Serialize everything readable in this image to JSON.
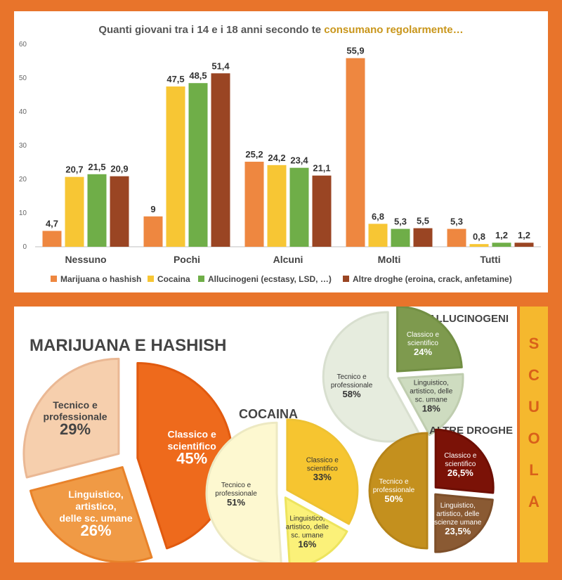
{
  "colors": {
    "background": "#e8742b",
    "marijuana": "#ee8740",
    "cocaina": "#f7c634",
    "allucinogeni": "#6fae48",
    "altre": "#9a4523",
    "accent_text": "#c9961b"
  },
  "chart_data": [
    {
      "type": "bar",
      "title_parts": [
        "Quanti giovani tra i 14 e i 18 anni secondo te ",
        "consumano regolarmente…"
      ],
      "categories": [
        "Nessuno",
        "Pochi",
        "Alcuni",
        "Molti",
        "Tutti"
      ],
      "series": [
        {
          "name": "Marijuana o hashish",
          "values": [
            4.7,
            9,
            25.2,
            55.9,
            5.3
          ],
          "labels": [
            "4,7",
            "9",
            "25,2",
            "55,9",
            "5,3"
          ]
        },
        {
          "name": "Cocaina",
          "values": [
            20.7,
            47.5,
            24.2,
            6.8,
            0.8
          ],
          "labels": [
            "20,7",
            "47,5",
            "24,2",
            "6,8",
            "0,8"
          ]
        },
        {
          "name": "Allucinogeni (ecstasy, LSD, …)",
          "values": [
            21.5,
            48.5,
            23.4,
            5.3,
            1.2
          ],
          "labels": [
            "21,5",
            "48,5",
            "23,4",
            "5,3",
            "1,2"
          ]
        },
        {
          "name": "Altre droghe (eroina, crack, anfetamine)",
          "values": [
            20.9,
            51.4,
            21.1,
            5.5,
            1.2
          ],
          "labels": [
            "20,9",
            "51,4",
            "21,1",
            "5,5",
            "1,2"
          ]
        }
      ],
      "ylim": [
        0,
        60
      ],
      "yticks": [
        "0",
        "10",
        "20",
        "30",
        "40",
        "50",
        "60"
      ],
      "legend_position": "bottom",
      "grid": false
    },
    {
      "type": "pie",
      "title": "MARIJUANA E HASHISH",
      "slices": [
        {
          "label": [
            "Classico e",
            "scientifico"
          ],
          "value": 45,
          "value_label": "45%"
        },
        {
          "label": [
            "Linguistico,",
            "artistico,",
            "delle sc. umane"
          ],
          "value": 26,
          "value_label": "26%"
        },
        {
          "label": [
            "Tecnico e",
            "professionale"
          ],
          "value": 29,
          "value_label": "29%"
        }
      ]
    },
    {
      "type": "pie",
      "title": "COCAINA",
      "slices": [
        {
          "label": [
            "Classico e",
            "scientifico"
          ],
          "value": 33,
          "value_label": "33%"
        },
        {
          "label": [
            "Linguistico,",
            "artistico, delle",
            "sc. umane"
          ],
          "value": 16,
          "value_label": "16%"
        },
        {
          "label": [
            "Tecnico e",
            "professionale"
          ],
          "value": 51,
          "value_label": "51%"
        }
      ]
    },
    {
      "type": "pie",
      "title": "ALLUCINOGENI",
      "slices": [
        {
          "label": [
            "Classico e",
            "scientifico"
          ],
          "value": 24,
          "value_label": "24%"
        },
        {
          "label": [
            "Linguistico,",
            "artistico, delle",
            "sc. umane"
          ],
          "value": 18,
          "value_label": "18%"
        },
        {
          "label": [
            "Tecnico e",
            "professionale"
          ],
          "value": 58,
          "value_label": "58%"
        }
      ]
    },
    {
      "type": "pie",
      "title": "ALTRE DROGHE",
      "slices": [
        {
          "label": [
            "Classico e",
            "scientifico"
          ],
          "value": 26.5,
          "value_label": "26,5%"
        },
        {
          "label": [
            "Linguistico,",
            "artistico, delle",
            "scienze umane"
          ],
          "value": 23.5,
          "value_label": "23,5%"
        },
        {
          "label": [
            "Tecnico e",
            "professionale"
          ],
          "value": 50,
          "value_label": "50%"
        }
      ]
    }
  ],
  "side_label": "SCUOLA"
}
